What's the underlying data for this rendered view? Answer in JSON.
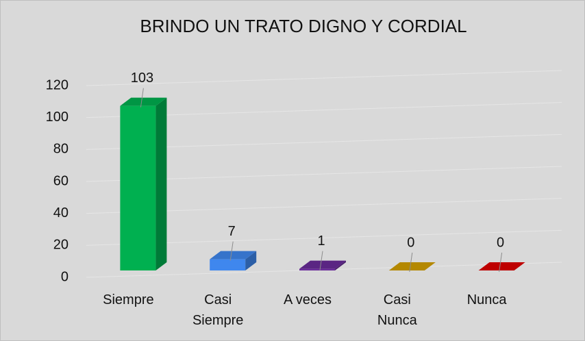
{
  "chart_data": {
    "type": "bar",
    "title": "BRINDO UN TRATO DIGNO Y CORDIAL",
    "categories": [
      "Siempre",
      "Casi Siempre",
      "A veces",
      "Casi Nunca",
      "Nunca"
    ],
    "values": [
      103,
      7,
      1,
      0,
      0
    ],
    "colors": [
      "#00b050",
      "#3f87ee",
      "#6a2c9a",
      "#d4a000",
      "#e00000"
    ],
    "ylim": [
      0,
      120
    ],
    "yticks": [
      0,
      20,
      40,
      60,
      80,
      100,
      120
    ],
    "grid": true
  }
}
